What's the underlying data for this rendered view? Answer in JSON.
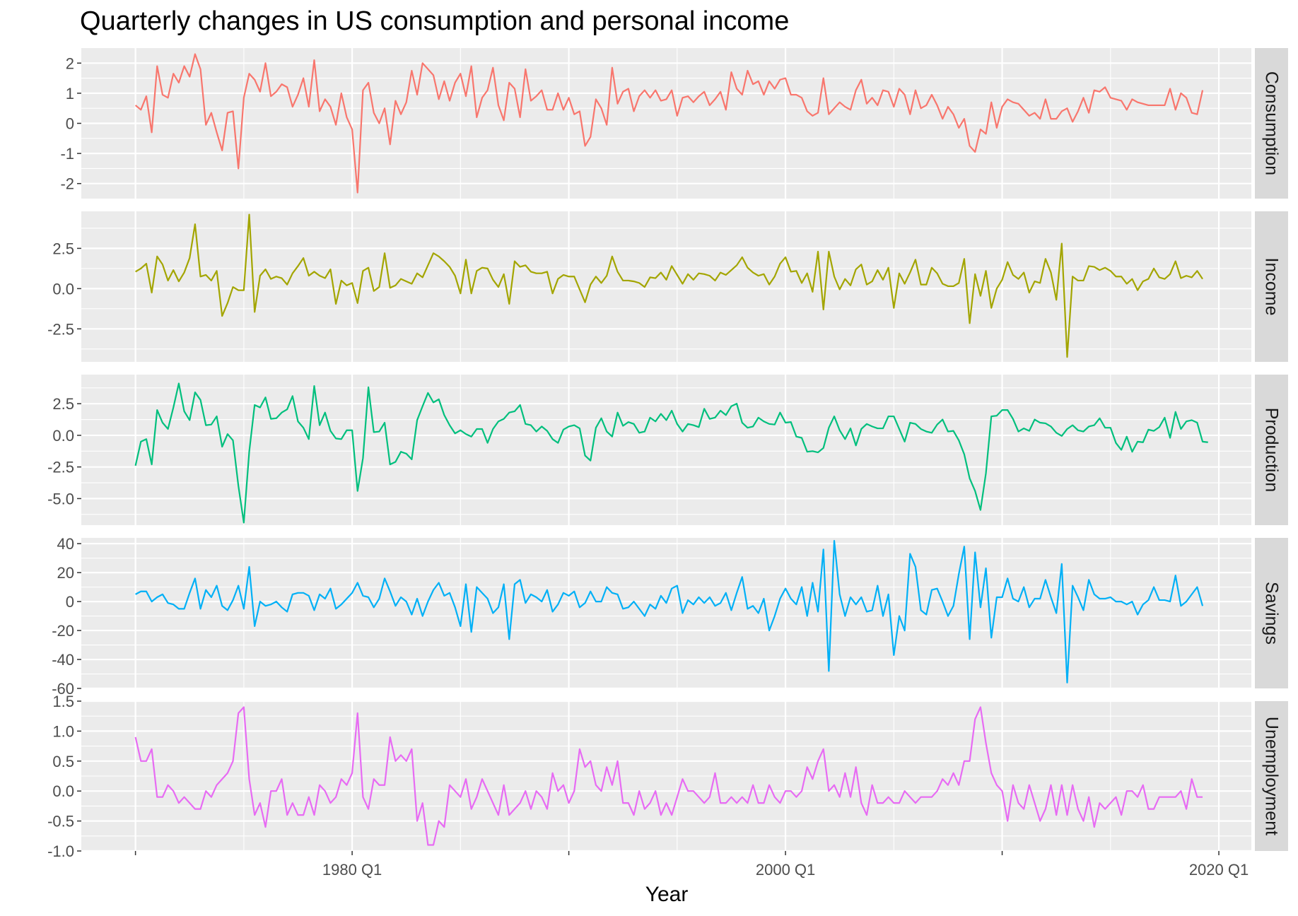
{
  "chart_data": {
    "type": "line",
    "title": "Quarterly changes in US consumption and personal income",
    "xlabel": "Year",
    "x_ticks": [
      "1980 Q1",
      "2000 Q1",
      "2020 Q1"
    ],
    "x_range": [
      1967.5,
      2021.5
    ],
    "series_start": 1970.0,
    "series_step": 0.25,
    "grid": true,
    "facet_strips": "right",
    "panels": [
      {
        "name": "Consumption",
        "color": "#F8766D",
        "ylim": [
          -2.5,
          2.5
        ],
        "yticks": [
          2,
          1,
          0,
          -1,
          -2
        ],
        "ytick_labels": [
          "2",
          "1",
          "0",
          "-1",
          "-2"
        ],
        "values": [
          0.6,
          0.45,
          0.9,
          -0.3,
          1.9,
          0.95,
          0.85,
          1.65,
          1.35,
          1.9,
          1.55,
          2.3,
          1.8,
          -0.05,
          0.35,
          -0.3,
          -0.9,
          0.35,
          0.4,
          -1.5,
          0.85,
          1.65,
          1.45,
          1.05,
          2.0,
          0.9,
          1.05,
          1.3,
          1.2,
          0.55,
          0.95,
          1.5,
          0.55,
          2.1,
          0.4,
          0.8,
          0.55,
          -0.05,
          1.0,
          0.2,
          -0.2,
          -2.3,
          1.1,
          1.35,
          0.35,
          0.0,
          0.5,
          -0.7,
          0.75,
          0.3,
          0.7,
          1.75,
          0.95,
          2.0,
          1.8,
          1.6,
          0.8,
          1.4,
          0.75,
          1.35,
          1.65,
          0.9,
          1.9,
          0.2,
          0.85,
          1.1,
          1.85,
          0.6,
          0.1,
          1.35,
          1.15,
          0.2,
          1.8,
          0.75,
          0.9,
          1.1,
          0.45,
          0.45,
          1.0,
          0.45,
          0.85,
          0.3,
          0.4,
          -0.75,
          -0.45,
          0.8,
          0.5,
          -0.05,
          1.85,
          0.65,
          1.05,
          1.15,
          0.4,
          0.9,
          1.1,
          0.85,
          1.1,
          0.75,
          0.8,
          1.1,
          0.25,
          0.85,
          0.9,
          0.7,
          0.9,
          1.05,
          0.6,
          0.8,
          1.05,
          0.45,
          1.7,
          1.15,
          0.95,
          1.75,
          1.3,
          1.4,
          0.95,
          1.4,
          1.15,
          1.45,
          1.5,
          0.95,
          0.95,
          0.85,
          0.4,
          0.25,
          0.35,
          1.5,
          0.3,
          0.5,
          0.7,
          0.55,
          0.45,
          1.1,
          1.45,
          0.65,
          0.85,
          0.6,
          1.1,
          1.05,
          0.55,
          1.15,
          0.95,
          0.3,
          1.1,
          0.5,
          0.6,
          0.95,
          0.6,
          0.15,
          0.55,
          0.3,
          -0.15,
          0.15,
          -0.75,
          -0.95,
          -0.2,
          -0.35,
          0.7,
          -0.15,
          0.55,
          0.8,
          0.7,
          0.65,
          0.45,
          0.25,
          0.35,
          0.15,
          0.8,
          0.15,
          0.15,
          0.4,
          0.5,
          0.05,
          0.4,
          0.85,
          0.35,
          1.1,
          1.05,
          1.2,
          0.85,
          0.8,
          0.75,
          0.45,
          0.8,
          0.7,
          0.65,
          0.6,
          0.6,
          0.6,
          0.6,
          1.15,
          0.45,
          1.0,
          0.85,
          0.35,
          0.3,
          1.1
        ]
      },
      {
        "name": "Income",
        "color": "#A3A500",
        "ylim": [
          -4.55,
          4.8
        ],
        "yticks": [
          2.5,
          0.0,
          -2.5
        ],
        "ytick_labels": [
          "2.5",
          "0.0",
          "-2.5"
        ],
        "values": [
          1.05,
          1.25,
          1.55,
          -0.25,
          2.0,
          1.5,
          0.5,
          1.15,
          0.45,
          1.0,
          1.9,
          4.0,
          0.75,
          0.85,
          0.5,
          1.1,
          -1.7,
          -0.9,
          0.1,
          -0.1,
          -0.1,
          4.6,
          -1.45,
          0.8,
          1.2,
          0.6,
          0.75,
          0.65,
          0.25,
          0.95,
          1.4,
          1.9,
          0.8,
          1.05,
          0.8,
          0.65,
          1.2,
          -0.95,
          0.5,
          0.2,
          0.35,
          -0.9,
          1.1,
          1.3,
          -0.15,
          0.1,
          2.2,
          0.05,
          0.2,
          0.6,
          0.45,
          0.3,
          0.95,
          0.7,
          1.45,
          2.2,
          2.0,
          1.7,
          1.35,
          0.8,
          -0.3,
          1.8,
          -0.3,
          1.1,
          1.3,
          1.25,
          0.55,
          0.1,
          0.9,
          -0.95,
          1.7,
          1.35,
          1.45,
          1.05,
          0.95,
          0.95,
          1.05,
          -0.3,
          0.6,
          0.85,
          0.75,
          0.75,
          -0.05,
          -0.85,
          0.25,
          0.75,
          0.35,
          0.8,
          2.0,
          1.05,
          0.5,
          0.5,
          0.45,
          0.35,
          0.1,
          0.7,
          0.65,
          1.0,
          0.55,
          1.4,
          0.85,
          0.3,
          0.9,
          0.55,
          0.95,
          0.9,
          0.8,
          0.5,
          1.0,
          0.85,
          1.15,
          1.45,
          1.95,
          1.3,
          1.0,
          0.8,
          0.9,
          0.25,
          0.75,
          1.55,
          1.95,
          1.05,
          1.1,
          0.35,
          0.95,
          -0.2,
          2.3,
          -1.3,
          2.3,
          0.75,
          -0.05,
          0.6,
          0.2,
          1.2,
          1.5,
          0.25,
          0.45,
          1.15,
          0.55,
          1.3,
          -1.2,
          0.95,
          0.3,
          1.0,
          1.8,
          0.25,
          0.25,
          1.3,
          0.95,
          0.3,
          0.15,
          0.15,
          0.35,
          1.85,
          -2.15,
          0.9,
          -0.45,
          1.1,
          -1.2,
          0.0,
          0.55,
          1.65,
          0.85,
          0.6,
          1.0,
          -0.25,
          0.45,
          0.35,
          1.85,
          1.0,
          -0.7,
          2.8,
          -4.25,
          0.75,
          0.5,
          0.5,
          1.4,
          1.35,
          1.15,
          1.3,
          1.1,
          0.75,
          0.75,
          0.3,
          0.6,
          -0.1,
          0.45,
          0.6,
          1.25,
          0.7,
          0.6,
          0.9,
          1.7,
          0.65,
          0.8,
          0.7,
          1.1,
          0.6
        ]
      },
      {
        "name": "Production",
        "color": "#00BF7D",
        "ylim": [
          -7.1,
          4.8
        ],
        "yticks": [
          2.5,
          0.0,
          -2.5,
          -5.0
        ],
        "ytick_labels": [
          "2.5",
          "0.0",
          "-2.5",
          "-5.0"
        ],
        "values": [
          -2.4,
          -0.5,
          -0.3,
          -2.3,
          2.0,
          1.0,
          0.5,
          2.2,
          4.1,
          1.9,
          1.2,
          3.4,
          2.8,
          0.8,
          0.85,
          1.5,
          -0.9,
          0.1,
          -0.4,
          -4.0,
          -6.9,
          -1.3,
          2.4,
          2.2,
          3.0,
          1.3,
          1.35,
          1.8,
          2.05,
          3.1,
          1.1,
          0.6,
          -0.3,
          3.9,
          0.8,
          1.8,
          0.35,
          -0.25,
          -0.3,
          0.4,
          0.4,
          -4.4,
          -1.8,
          3.8,
          0.25,
          0.3,
          1.0,
          -2.3,
          -2.1,
          -1.3,
          -1.45,
          -1.9,
          1.2,
          2.3,
          3.35,
          2.6,
          2.85,
          1.6,
          0.8,
          0.15,
          0.4,
          0.1,
          -0.1,
          0.5,
          0.5,
          -0.6,
          0.5,
          1.1,
          1.3,
          1.8,
          1.9,
          2.4,
          0.9,
          0.8,
          0.3,
          0.7,
          0.35,
          -0.3,
          -0.6,
          0.45,
          0.7,
          0.8,
          0.55,
          -1.6,
          -2.0,
          0.6,
          1.35,
          0.3,
          -0.1,
          1.8,
          0.75,
          1.05,
          0.9,
          0.2,
          0.3,
          1.4,
          1.1,
          1.7,
          1.2,
          1.95,
          0.9,
          0.3,
          0.9,
          0.8,
          0.65,
          2.1,
          1.3,
          1.4,
          1.95,
          1.6,
          2.3,
          2.5,
          1.0,
          0.6,
          0.7,
          1.4,
          1.1,
          0.9,
          0.85,
          1.8,
          1.0,
          1.05,
          -0.1,
          -0.2,
          -1.3,
          -1.25,
          -1.35,
          -1.0,
          0.6,
          1.5,
          0.4,
          -0.3,
          0.55,
          -0.8,
          0.5,
          0.9,
          0.7,
          0.55,
          0.55,
          1.5,
          1.5,
          0.5,
          -0.5,
          1.0,
          0.9,
          0.5,
          0.3,
          0.2,
          0.85,
          1.25,
          0.3,
          0.35,
          -0.4,
          -1.5,
          -3.4,
          -4.4,
          -5.9,
          -3.0,
          1.5,
          1.55,
          2.0,
          2.0,
          1.3,
          0.3,
          0.55,
          0.35,
          1.25,
          1.0,
          0.95,
          0.7,
          0.2,
          -0.05,
          0.5,
          0.8,
          0.4,
          0.3,
          0.7,
          0.8,
          1.35,
          0.6,
          0.6,
          -0.6,
          -1.15,
          -0.1,
          -1.3,
          -0.5,
          -0.55,
          0.45,
          0.35,
          0.65,
          1.4,
          -0.2,
          1.85,
          0.5,
          1.1,
          1.2,
          1.0,
          -0.5,
          -0.55
        ]
      },
      {
        "name": "Savings",
        "color": "#00B0F6",
        "ylim": [
          -60,
          44
        ],
        "yticks": [
          40,
          20,
          0,
          -20,
          -40,
          -60
        ],
        "ytick_labels": [
          "40",
          "20",
          "0",
          "-20",
          "-40",
          "-60"
        ],
        "values": [
          5,
          7,
          7,
          0,
          3,
          5,
          -1,
          -2,
          -5,
          -5,
          6,
          16,
          -5,
          8,
          3,
          11,
          -3,
          -6,
          1,
          11,
          -5,
          24,
          -17,
          0,
          -3,
          -2,
          0,
          -4,
          -7,
          5,
          6,
          6,
          4,
          -6,
          5,
          2,
          9,
          -5,
          -2,
          2,
          6,
          13,
          4,
          3,
          -4,
          2,
          16,
          7,
          -3,
          3,
          0,
          -9,
          2,
          -10,
          0,
          8,
          13,
          4,
          6,
          -4,
          -17,
          12,
          -21,
          10,
          6,
          2,
          -8,
          -4,
          12,
          -26,
          12,
          15,
          -1,
          5,
          3,
          0,
          8,
          -7,
          -2,
          6,
          4,
          7,
          -4,
          -1,
          7,
          0,
          0,
          10,
          6,
          5,
          -5,
          -4,
          0,
          -5,
          -10,
          -2,
          -5,
          4,
          -1,
          9,
          11,
          -8,
          1,
          -2,
          3,
          -1,
          3,
          -3,
          -1,
          6,
          -6,
          6,
          17,
          -5,
          -3,
          -8,
          2,
          -20,
          -10,
          2,
          9,
          2,
          -2,
          10,
          -10,
          13,
          -7,
          36,
          -48,
          42,
          5,
          -10,
          3,
          -2,
          3,
          -7,
          -6,
          11,
          -10,
          5,
          -37,
          -10,
          -20,
          33,
          24,
          -6,
          -9,
          8,
          9,
          0,
          -10,
          -3,
          19,
          38,
          -26,
          34,
          -4,
          23,
          -25,
          3,
          3,
          16,
          2,
          0,
          10,
          -4,
          2,
          2,
          15,
          3,
          -8,
          26,
          -56,
          11,
          3,
          -6,
          15,
          5,
          2,
          2,
          3,
          0,
          0,
          -2,
          0,
          -9,
          -2,
          1,
          10,
          1,
          1,
          0,
          18,
          -3,
          0,
          5,
          10,
          -3
        ]
      },
      {
        "name": "Unemployment",
        "color": "#E76BF3",
        "ylim": [
          -1.0,
          1.5
        ],
        "yticks": [
          1.5,
          1.0,
          0.5,
          0.0,
          -0.5,
          -1.0
        ],
        "ytick_labels": [
          "1.5",
          "1.0",
          "0.5",
          "0.0",
          "-0.5",
          "-1.0"
        ],
        "values": [
          0.9,
          0.5,
          0.5,
          0.7,
          -0.1,
          -0.1,
          0.1,
          0.0,
          -0.2,
          -0.1,
          -0.2,
          -0.3,
          -0.3,
          0.0,
          -0.1,
          0.1,
          0.2,
          0.3,
          0.5,
          1.3,
          1.4,
          0.2,
          -0.4,
          -0.2,
          -0.6,
          0.0,
          0.0,
          0.2,
          -0.4,
          -0.2,
          -0.4,
          -0.4,
          -0.1,
          -0.4,
          0.1,
          0.0,
          -0.2,
          -0.1,
          0.2,
          0.1,
          0.3,
          1.3,
          -0.1,
          -0.3,
          0.2,
          0.1,
          0.1,
          0.9,
          0.5,
          0.6,
          0.5,
          0.7,
          -0.5,
          -0.2,
          -0.9,
          -0.9,
          -0.5,
          -0.6,
          0.1,
          0.0,
          -0.1,
          0.2,
          -0.3,
          -0.1,
          0.2,
          0.0,
          -0.2,
          -0.4,
          0.1,
          -0.4,
          -0.3,
          -0.2,
          0.0,
          -0.3,
          0.0,
          -0.1,
          -0.3,
          0.3,
          0.0,
          0.1,
          -0.2,
          0.0,
          0.7,
          0.4,
          0.5,
          0.1,
          0.0,
          0.4,
          0.1,
          0.5,
          -0.2,
          -0.2,
          -0.4,
          0.0,
          -0.3,
          -0.2,
          0.0,
          -0.4,
          -0.2,
          -0.4,
          -0.1,
          0.2,
          0.0,
          0.0,
          -0.1,
          -0.2,
          -0.1,
          0.3,
          -0.2,
          -0.2,
          -0.1,
          -0.2,
          -0.1,
          -0.2,
          0.1,
          -0.2,
          -0.2,
          0.1,
          -0.1,
          -0.2,
          0.0,
          0.0,
          -0.1,
          0.0,
          0.4,
          0.2,
          0.5,
          0.7,
          0.0,
          0.1,
          -0.1,
          0.3,
          -0.1,
          0.4,
          -0.2,
          -0.4,
          0.1,
          -0.2,
          -0.2,
          -0.1,
          -0.2,
          -0.2,
          0.0,
          -0.1,
          -0.2,
          -0.1,
          -0.1,
          -0.1,
          0.0,
          0.2,
          0.1,
          0.3,
          0.1,
          0.5,
          0.5,
          1.2,
          1.4,
          0.8,
          0.3,
          0.1,
          0.0,
          -0.5,
          0.1,
          -0.2,
          -0.3,
          0.1,
          -0.2,
          -0.5,
          -0.3,
          0.1,
          -0.4,
          0.1,
          -0.4,
          0.1,
          -0.3,
          -0.5,
          -0.1,
          -0.6,
          -0.2,
          -0.3,
          -0.2,
          -0.1,
          -0.4,
          0.0,
          0.0,
          -0.1,
          0.1,
          -0.3,
          -0.3,
          -0.1,
          -0.1,
          -0.1,
          -0.1,
          0.0,
          -0.3,
          0.2,
          -0.1,
          -0.1
        ]
      }
    ]
  }
}
